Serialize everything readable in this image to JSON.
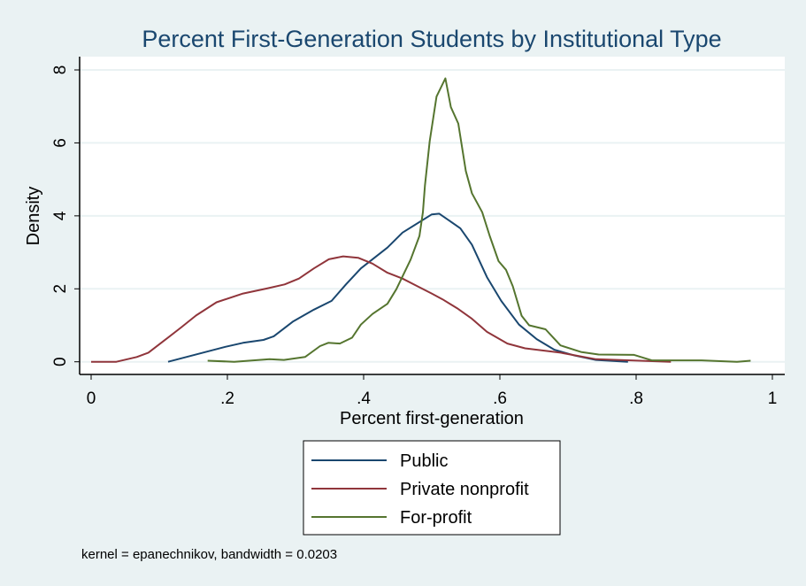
{
  "chart_data": {
    "type": "line",
    "title": "Percent First-Generation Students by Institutional Type",
    "xlabel": "Percent first-generation",
    "ylabel": "Density",
    "xlim": [
      0,
      1
    ],
    "ylim": [
      0,
      8
    ],
    "xticks": [
      0,
      0.2,
      0.4,
      0.6,
      0.8,
      1
    ],
    "xtick_labels": [
      "0",
      ".2",
      ".4",
      ".6",
      ".8",
      "1"
    ],
    "yticks": [
      0,
      2,
      4,
      6,
      8
    ],
    "ytick_labels": [
      "0",
      "2",
      "4",
      "6",
      "8"
    ],
    "grid": "horizontal",
    "legend_position": "bottom",
    "note": "kernel = epanechnikov, bandwidth = 0.0203",
    "series": [
      {
        "name": "Public",
        "color": "#1a476f",
        "x": [
          0.113,
          0.197,
          0.223,
          0.253,
          0.268,
          0.296,
          0.327,
          0.353,
          0.374,
          0.396,
          0.435,
          0.457,
          0.5,
          0.511,
          0.542,
          0.559,
          0.581,
          0.602,
          0.628,
          0.654,
          0.68,
          0.71,
          0.741,
          0.788
        ],
        "y": [
          0,
          0.41,
          0.52,
          0.6,
          0.7,
          1.1,
          1.43,
          1.67,
          2.12,
          2.56,
          3.13,
          3.54,
          4.04,
          4.06,
          3.66,
          3.21,
          2.32,
          1.67,
          1.02,
          0.62,
          0.33,
          0.17,
          0.05,
          0
        ]
      },
      {
        "name": "Private nonprofit",
        "color": "#90353b",
        "x": [
          0,
          0.037,
          0.067,
          0.084,
          0.11,
          0.132,
          0.154,
          0.184,
          0.223,
          0.258,
          0.284,
          0.305,
          0.327,
          0.349,
          0.37,
          0.392,
          0.413,
          0.435,
          0.457,
          0.478,
          0.5,
          0.516,
          0.537,
          0.559,
          0.581,
          0.611,
          0.637,
          0.689,
          0.741,
          0.851
        ],
        "y": [
          0,
          0,
          0.13,
          0.25,
          0.62,
          0.94,
          1.27,
          1.63,
          1.87,
          2.01,
          2.12,
          2.28,
          2.56,
          2.81,
          2.89,
          2.85,
          2.69,
          2.44,
          2.28,
          2.08,
          1.87,
          1.71,
          1.47,
          1.18,
          0.82,
          0.5,
          0.37,
          0.25,
          0.07,
          0
        ]
      },
      {
        "name": "For-profit",
        "color": "#55752f",
        "x": [
          0.171,
          0.21,
          0.262,
          0.283,
          0.314,
          0.336,
          0.348,
          0.365,
          0.383,
          0.396,
          0.413,
          0.435,
          0.448,
          0.469,
          0.482,
          0.487,
          0.49,
          0.497,
          0.507,
          0.52,
          0.528,
          0.539,
          0.55,
          0.559,
          0.574,
          0.585,
          0.598,
          0.609,
          0.619,
          0.632,
          0.643,
          0.667,
          0.689,
          0.719,
          0.745,
          0.797,
          0.823,
          0.896,
          0.948,
          0.968
        ],
        "y": [
          0.03,
          0,
          0.07,
          0.05,
          0.13,
          0.43,
          0.52,
          0.5,
          0.66,
          1.02,
          1.31,
          1.59,
          1.99,
          2.8,
          3.45,
          4.1,
          4.83,
          6.05,
          7.27,
          7.77,
          6.98,
          6.53,
          5.23,
          4.62,
          4.1,
          3.45,
          2.76,
          2.52,
          2.07,
          1.26,
          1.0,
          0.89,
          0.45,
          0.27,
          0.2,
          0.19,
          0.04,
          0.04,
          0,
          0.03
        ]
      }
    ]
  }
}
